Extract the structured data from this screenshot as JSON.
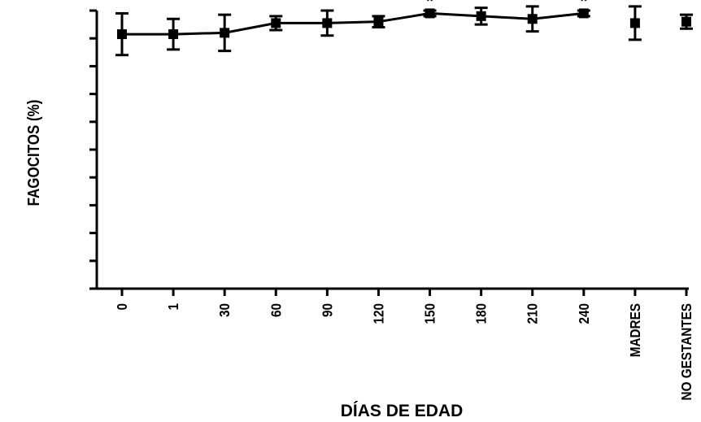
{
  "chart_data": {
    "type": "line",
    "title": "",
    "ylabel": "FAGOCITOS (%)",
    "xlabel": "DÍAS DE EDAD",
    "categories": [
      "0",
      "1",
      "30",
      "60",
      "90",
      "120",
      "150",
      "180",
      "210",
      "240",
      "MADRES",
      "NO GESTANTES"
    ],
    "ylim": [
      0,
      100
    ],
    "y_ticks": [
      0,
      10,
      20,
      30,
      40,
      50,
      60,
      70,
      80,
      90,
      100
    ],
    "y_tick_labels_shown": false,
    "series": [
      {
        "values": [
          91.5,
          91.5,
          92,
          95.5,
          95.5,
          96,
          99,
          98,
          97,
          99,
          null,
          null
        ],
        "error": [
          7.5,
          5.5,
          6.5,
          2.5,
          4.5,
          2,
          1,
          3,
          4.5,
          1,
          null,
          null
        ],
        "connected": true,
        "marker": "square",
        "color": "#000000"
      },
      {
        "values": [
          null,
          null,
          null,
          null,
          null,
          null,
          null,
          null,
          null,
          null,
          95.5,
          96
        ],
        "error": [
          null,
          null,
          null,
          null,
          null,
          null,
          null,
          null,
          null,
          null,
          6,
          2.5
        ],
        "connected": false,
        "marker": "square",
        "color": "#000000"
      }
    ],
    "annotations": [
      {
        "category": "150",
        "text": "*"
      },
      {
        "category": "240",
        "text": "*"
      }
    ],
    "grid": false,
    "legend": "none"
  }
}
